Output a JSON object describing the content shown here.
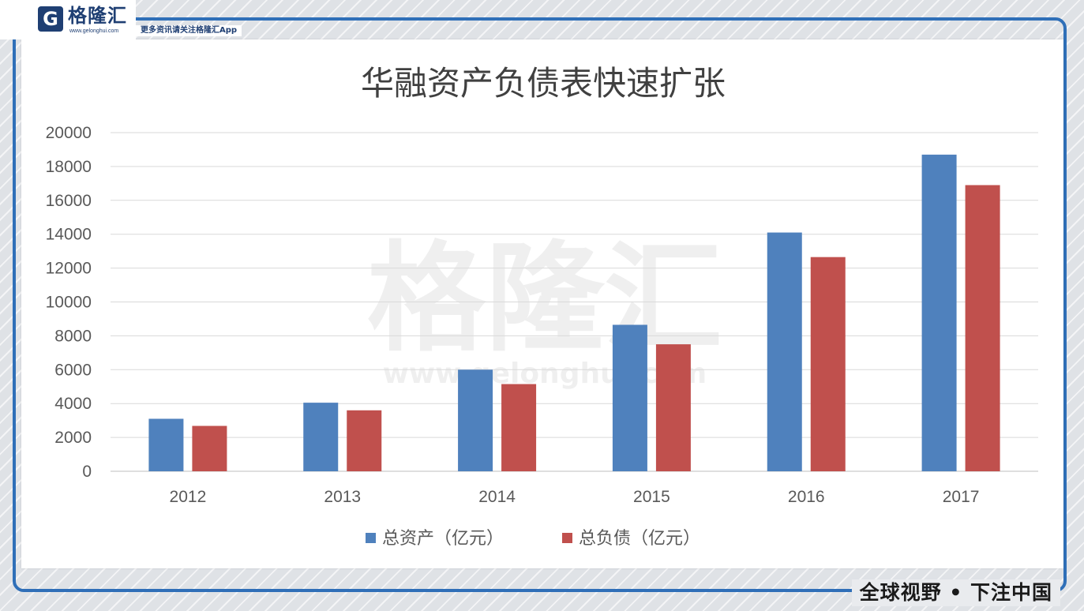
{
  "brand": {
    "logo_letter": "G",
    "name": "格隆汇",
    "url": "www.gelonghui.com",
    "tagline": "更多资讯请关注格隆汇App",
    "slogan": "全球视野 • 下注中国"
  },
  "watermark": {
    "name": "格隆汇",
    "url": "www.gelonghui.com"
  },
  "colors": {
    "frame": "#2f6fb8",
    "assets": "#4f81bd",
    "liabilities": "#c0504d",
    "grid": "#d9d9d9"
  },
  "chart_data": {
    "type": "bar",
    "title": "华融资产负债表快速扩张",
    "categories": [
      "2012",
      "2013",
      "2014",
      "2015",
      "2016",
      "2017"
    ],
    "series": [
      {
        "name": "总资产（亿元）",
        "color": "#4f81bd",
        "values": [
          3100,
          4050,
          6000,
          8650,
          14100,
          18700
        ]
      },
      {
        "name": "总负债（亿元）",
        "color": "#c0504d",
        "values": [
          2680,
          3600,
          5150,
          7500,
          12650,
          16900
        ]
      }
    ],
    "ylim": [
      0,
      20000
    ],
    "yticks": [
      0,
      2000,
      4000,
      6000,
      8000,
      10000,
      12000,
      14000,
      16000,
      18000,
      20000
    ],
    "grid": true,
    "legend": "bottom"
  }
}
